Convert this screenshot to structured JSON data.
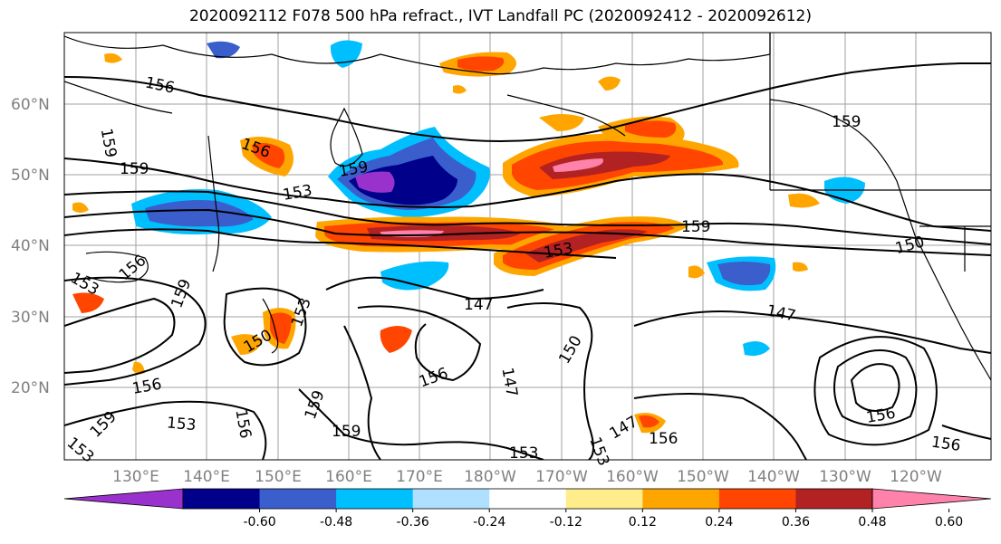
{
  "title": "2020092112 F078 500 hPa refract., IVT Landfall PC (2020092412 - 2020092612)",
  "lat_labels": [
    "60°N",
    "50°N",
    "40°N",
    "30°N",
    "20°N"
  ],
  "lon_labels": [
    "130°E",
    "140°E",
    "150°E",
    "160°E",
    "170°E",
    "180°W",
    "170°W",
    "160°W",
    "150°W",
    "140°W",
    "130°W",
    "120°W"
  ],
  "contour_labels": [
    "156",
    "159",
    "159",
    "156",
    "153",
    "159",
    "153",
    "159",
    "159",
    "150",
    "153",
    "156",
    "159",
    "153",
    "147",
    "147",
    "150",
    "150",
    "156",
    "159",
    "159",
    "156",
    "147",
    "153",
    "147",
    "153",
    "156",
    "153",
    "156",
    "156",
    "159",
    "156",
    "153"
  ],
  "colorbar": {
    "colors": [
      "#9932cc",
      "#00008b",
      "#3a5fcd",
      "#00bfff",
      "#b0e0ff",
      "#ffffff",
      "#ffec8b",
      "#ffa500",
      "#ff4500",
      "#b22222",
      "#ff82ab"
    ],
    "tick_labels": [
      "-0.60",
      "-0.48",
      "-0.36",
      "-0.24",
      "-0.12",
      "0.12",
      "0.24",
      "0.36",
      "0.48",
      "0.60"
    ]
  }
}
